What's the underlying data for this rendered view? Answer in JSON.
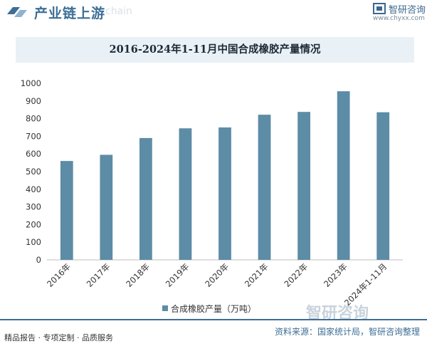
{
  "header": {
    "title": "产业链上游",
    "watermark_text": "chain"
  },
  "logo": {
    "name": "智研咨询",
    "url": "www.chyxx.com"
  },
  "chart_data": {
    "type": "bar",
    "title": "2016-2024年1-11月中国合成橡胶产量情况",
    "categories": [
      "2016年",
      "2017年",
      "2018年",
      "2019年",
      "2020年",
      "2021年",
      "2022年",
      "2023年",
      "2024年1-11月"
    ],
    "series": [
      {
        "name": "合成橡胶产量（万吨）",
        "values": [
          560,
          595,
          690,
          745,
          750,
          822,
          838,
          955,
          836
        ]
      }
    ],
    "ylim": [
      0,
      1000
    ],
    "yticks": [
      0,
      100,
      200,
      300,
      400,
      500,
      600,
      700,
      800,
      900,
      1000
    ],
    "grid": false,
    "legend_position": "bottom",
    "colors": {
      "bar": "#5d8ca6"
    }
  },
  "watermark": "智研咨询",
  "footer": {
    "left": "精品报告 · 专项定制 · 品质服务",
    "source": "资料来源：国家统计局，智研咨询整理"
  },
  "colors": {
    "accent": "#3d6e95",
    "bar": "#5d8ca6",
    "title_band": "#e9f1f7"
  }
}
